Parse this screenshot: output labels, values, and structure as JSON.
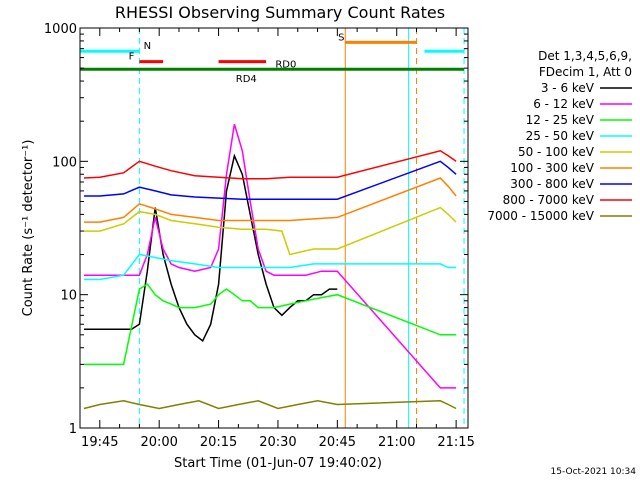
{
  "chart_data": {
    "type": "line",
    "title": "RHESSI Observing Summary Count Rates",
    "xlabel": "Start Time (01-Jun-07 19:40:02)",
    "ylabel": "Count Rate (s⁻¹ detector⁻¹)",
    "y_scale": "log",
    "ylim": [
      1,
      1000
    ],
    "xlim": [
      "19:40",
      "21:18"
    ],
    "x_ticks": [
      "19:45",
      "20:00",
      "20:15",
      "20:30",
      "20:45",
      "21:00",
      "21:15"
    ],
    "y_ticks": [
      "1",
      "10",
      "100",
      "1000"
    ],
    "legend_header": [
      "Det 1,3,4,5,6,9,",
      "FDecim 1, Att 0"
    ],
    "legend_placement": "right",
    "timestamp": "15-Oct-2021 10:34",
    "data_gaps": [
      [
        "20:47",
        "21:07"
      ]
    ],
    "series": [
      {
        "name": "3 - 6 keV",
        "color": "#000000",
        "x": [
          "19:41",
          "19:43",
          "19:45",
          "19:47",
          "19:49",
          "19:51",
          "19:53",
          "19:55",
          "19:57",
          "19:59",
          "20:01",
          "20:03",
          "20:05",
          "20:07",
          "20:09",
          "20:11",
          "20:13",
          "20:15",
          "20:17",
          "20:19",
          "20:21",
          "20:23",
          "20:25",
          "20:27",
          "20:29",
          "20:31",
          "20:33",
          "20:35",
          "20:37",
          "20:39",
          "20:41",
          "20:43",
          "20:45"
        ],
        "y": [
          5.5,
          5.5,
          5.5,
          5.5,
          5.5,
          5.5,
          5.5,
          6,
          15,
          45,
          20,
          12,
          8,
          6,
          5,
          4.5,
          6,
          12,
          60,
          110,
          80,
          40,
          20,
          12,
          8,
          7,
          8,
          9,
          9,
          10,
          10,
          11,
          11
        ]
      },
      {
        "name": "6 - 12 keV",
        "color": "#ff00ff",
        "x": [
          "19:41",
          "19:45",
          "19:51",
          "19:55",
          "19:57",
          "19:59",
          "20:01",
          "20:03",
          "20:05",
          "20:09",
          "20:13",
          "20:15",
          "20:17",
          "20:19",
          "20:21",
          "20:23",
          "20:25",
          "20:27",
          "20:29",
          "20:33",
          "20:37",
          "20:41",
          "20:45",
          "21:11",
          "21:13",
          "21:15"
        ],
        "y": [
          14,
          14,
          14,
          14,
          20,
          38,
          22,
          17,
          16,
          15,
          16,
          22,
          80,
          190,
          120,
          50,
          22,
          15,
          14,
          14,
          14,
          15,
          15,
          2,
          2,
          2
        ]
      },
      {
        "name": "12 - 25 keV",
        "color": "#00ff00",
        "x": [
          "19:41",
          "19:45",
          "19:51",
          "19:55",
          "19:57",
          "19:59",
          "20:01",
          "20:03",
          "20:05",
          "20:09",
          "20:13",
          "20:15",
          "20:17",
          "20:19",
          "20:21",
          "20:23",
          "20:25",
          "20:29",
          "20:33",
          "20:37",
          "20:41",
          "20:45",
          "21:11",
          "21:13",
          "21:15"
        ],
        "y": [
          3,
          3,
          3,
          11,
          12,
          10,
          9,
          8.5,
          8,
          8,
          8.5,
          10,
          11,
          10,
          9,
          9,
          8,
          8,
          8.5,
          9,
          9.5,
          10,
          5,
          5,
          5
        ]
      },
      {
        "name": "25 - 50 keV",
        "color": "#00ffff",
        "x": [
          "19:41",
          "19:45",
          "19:51",
          "19:55",
          "19:59",
          "20:03",
          "20:09",
          "20:15",
          "20:21",
          "20:27",
          "20:33",
          "20:39",
          "20:45",
          "21:11",
          "21:13",
          "21:15"
        ],
        "y": [
          13,
          13,
          14,
          20,
          19,
          18,
          17,
          16,
          16,
          16,
          16,
          17,
          17,
          17,
          16,
          16
        ]
      },
      {
        "name": "50 - 100 keV",
        "color": "#cccc00",
        "x": [
          "19:41",
          "19:45",
          "19:51",
          "19:55",
          "19:59",
          "20:03",
          "20:09",
          "20:15",
          "20:21",
          "20:27",
          "20:31",
          "20:33",
          "20:39",
          "20:45",
          "21:11",
          "21:13",
          "21:15"
        ],
        "y": [
          30,
          30,
          34,
          42,
          40,
          36,
          34,
          32,
          31,
          31,
          30,
          20,
          22,
          22,
          45,
          40,
          35
        ]
      },
      {
        "name": "100 - 300 keV",
        "color": "#ff8000",
        "x": [
          "19:41",
          "19:45",
          "19:51",
          "19:55",
          "19:59",
          "20:03",
          "20:09",
          "20:15",
          "20:21",
          "20:27",
          "20:33",
          "20:39",
          "20:45",
          "21:11",
          "21:13",
          "21:15"
        ],
        "y": [
          35,
          35,
          38,
          48,
          44,
          40,
          38,
          36,
          36,
          36,
          36,
          37,
          38,
          75,
          65,
          55
        ]
      },
      {
        "name": "300 - 800 keV",
        "color": "#0000ff",
        "x": [
          "19:41",
          "19:45",
          "19:51",
          "19:55",
          "19:59",
          "20:03",
          "20:09",
          "20:15",
          "20:21",
          "20:27",
          "20:33",
          "20:39",
          "20:45",
          "21:11",
          "21:13",
          "21:15"
        ],
        "y": [
          55,
          55,
          57,
          64,
          60,
          56,
          54,
          53,
          52,
          52,
          52,
          52,
          52,
          100,
          90,
          80
        ]
      },
      {
        "name": "800 - 7000 keV",
        "color": "#ff0000",
        "x": [
          "19:41",
          "19:45",
          "19:51",
          "19:55",
          "19:59",
          "20:03",
          "20:09",
          "20:15",
          "20:21",
          "20:27",
          "20:33",
          "20:39",
          "20:45",
          "21:11",
          "21:13",
          "21:15"
        ],
        "y": [
          75,
          76,
          82,
          100,
          92,
          85,
          78,
          76,
          74,
          74,
          76,
          76,
          76,
          120,
          110,
          100
        ]
      },
      {
        "name": "7000 - 15000 keV",
        "color": "#808000",
        "x": [
          "19:41",
          "19:45",
          "19:51",
          "19:55",
          "20:00",
          "20:05",
          "20:10",
          "20:15",
          "20:20",
          "20:25",
          "20:30",
          "20:35",
          "20:40",
          "20:45",
          "21:11",
          "21:13",
          "21:15"
        ],
        "y": [
          1.4,
          1.5,
          1.6,
          1.5,
          1.4,
          1.5,
          1.6,
          1.4,
          1.5,
          1.6,
          1.4,
          1.5,
          1.6,
          1.5,
          1.6,
          1.5,
          1.4
        ]
      }
    ],
    "flags": [
      {
        "label": "N",
        "color": "#00ffff",
        "start": "19:40",
        "end": "19:55",
        "level": 670,
        "label_at": "19:57"
      },
      {
        "label": "N",
        "color": "#00ffff",
        "start": "21:07",
        "end": "21:17",
        "level": 670,
        "label_at": null
      },
      {
        "label": "F",
        "color": "#ff0000",
        "start": "19:55",
        "end": "20:01",
        "level": 560,
        "label_at": "19:53"
      },
      {
        "label": "F",
        "color": "#ff0000",
        "start": "20:15",
        "end": "20:27",
        "level": 560,
        "label_at": null
      },
      {
        "label": "S",
        "color": "#ff8000",
        "start": "20:47",
        "end": "21:05",
        "level": 780,
        "label_at": "20:46"
      },
      {
        "label": "RD0",
        "color": "#008000",
        "start": "19:40",
        "end": "21:17",
        "level": 490,
        "label_at": "20:32"
      },
      {
        "label": "RD4",
        "color": "#008000",
        "start": null,
        "end": null,
        "level": 430,
        "label_at": "20:22"
      }
    ],
    "markers": [
      {
        "color": "#00ffff",
        "style": "dashed",
        "at": "19:55"
      },
      {
        "color": "#ff8000",
        "style": "solid",
        "at": "20:47"
      },
      {
        "color": "#00ffff",
        "style": "solid",
        "at": "21:03"
      },
      {
        "color": "#ff8000",
        "style": "dashed",
        "at": "21:05"
      },
      {
        "color": "#00ffff",
        "style": "dashed",
        "at": "21:17"
      }
    ]
  }
}
